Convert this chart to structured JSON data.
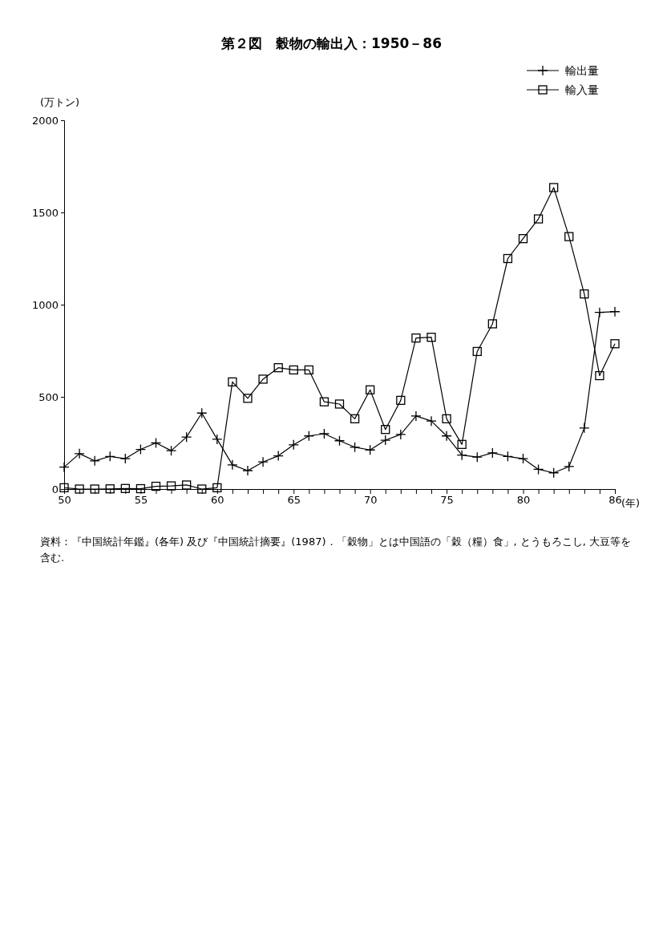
{
  "chart_data": {
    "type": "line",
    "title": "第２図　穀物の輸出入：1950－86",
    "ylabel": "(万トン)",
    "xlabel": "(年)",
    "x": [
      1950,
      1951,
      1952,
      1953,
      1954,
      1955,
      1956,
      1957,
      1958,
      1959,
      1960,
      1961,
      1962,
      1963,
      1964,
      1965,
      1966,
      1967,
      1968,
      1969,
      1970,
      1971,
      1972,
      1973,
      1974,
      1975,
      1976,
      1977,
      1978,
      1979,
      1980,
      1981,
      1982,
      1983,
      1984,
      1985,
      1986
    ],
    "series": [
      {
        "name": "輸出量",
        "color": "#000000",
        "marker": "cross",
        "values": [
          119,
          192,
          153,
          177,
          165,
          215,
          250,
          208,
          282,
          412,
          270,
          131,
          100,
          147,
          180,
          240,
          288,
          300,
          262,
          227,
          212,
          265,
          296,
          396,
          369,
          288,
          184,
          173,
          196,
          177,
          165,
          107,
          88,
          122,
          331,
          958,
          962
        ]
      },
      {
        "name": "輸入量",
        "color": "#000000",
        "marker": "square",
        "values": [
          7,
          0,
          0,
          1,
          3,
          2,
          15,
          17,
          22,
          0,
          7,
          581,
          492,
          596,
          658,
          646,
          646,
          473,
          461,
          381,
          538,
          323,
          481,
          819,
          823,
          381,
          242,
          746,
          896,
          1250,
          1358,
          1465,
          1635,
          1369,
          1058,
          615,
          788
        ]
      }
    ],
    "xlim": [
      1950,
      1986
    ],
    "xticks": [
      {
        "value": 1950,
        "label": "50"
      },
      {
        "value": 1951,
        "label": null
      },
      {
        "value": 1952,
        "label": null
      },
      {
        "value": 1953,
        "label": null
      },
      {
        "value": 1954,
        "label": null
      },
      {
        "value": 1955,
        "label": "55"
      },
      {
        "value": 1956,
        "label": null
      },
      {
        "value": 1957,
        "label": null
      },
      {
        "value": 1958,
        "label": null
      },
      {
        "value": 1959,
        "label": null
      },
      {
        "value": 1960,
        "label": "60"
      },
      {
        "value": 1961,
        "label": null
      },
      {
        "value": 1962,
        "label": null
      },
      {
        "value": 1963,
        "label": null
      },
      {
        "value": 1964,
        "label": null
      },
      {
        "value": 1965,
        "label": "65"
      },
      {
        "value": 1966,
        "label": null
      },
      {
        "value": 1967,
        "label": null
      },
      {
        "value": 1968,
        "label": null
      },
      {
        "value": 1969,
        "label": null
      },
      {
        "value": 1970,
        "label": "70"
      },
      {
        "value": 1971,
        "label": null
      },
      {
        "value": 1972,
        "label": null
      },
      {
        "value": 1973,
        "label": null
      },
      {
        "value": 1974,
        "label": null
      },
      {
        "value": 1975,
        "label": "75"
      },
      {
        "value": 1976,
        "label": null
      },
      {
        "value": 1977,
        "label": null
      },
      {
        "value": 1978,
        "label": null
      },
      {
        "value": 1979,
        "label": null
      },
      {
        "value": 1980,
        "label": "80"
      },
      {
        "value": 1981,
        "label": null
      },
      {
        "value": 1982,
        "label": null
      },
      {
        "value": 1983,
        "label": null
      },
      {
        "value": 1984,
        "label": null
      },
      {
        "value": 1985,
        "label": null
      },
      {
        "value": 1986,
        "label": "86"
      }
    ],
    "ylim": [
      0,
      2000
    ],
    "yticks": [
      0,
      500,
      1000,
      1500,
      2000
    ],
    "grid": false,
    "legend": "top right",
    "line_style": "solid",
    "annotations": [
      "資料：『中国統計年鑑』(各年) 及び『中国統計摘要』(1987)．「穀物」とは中国語の「穀（糧）食」, とうもろこし, 大豆等を含む."
    ]
  }
}
